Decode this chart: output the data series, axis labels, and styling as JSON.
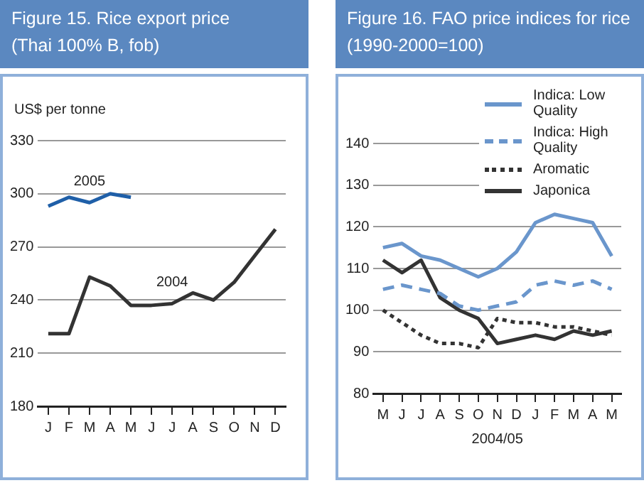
{
  "chart_data": [
    {
      "type": "line",
      "title": "Figure 15. Rice export price",
      "subtitle": "(Thai 100% B, fob)",
      "ylabel": "US$ per tonne",
      "categories": [
        "J",
        "F",
        "M",
        "A",
        "M",
        "J",
        "J",
        "A",
        "S",
        "O",
        "N",
        "D"
      ],
      "series": [
        {
          "name": "2005",
          "color": "#1f5fa8",
          "values": [
            293,
            298,
            295,
            300,
            298,
            null,
            null,
            null,
            null,
            null,
            null,
            null
          ]
        },
        {
          "name": "2004",
          "color": "#333333",
          "values": [
            221,
            221,
            253,
            248,
            237,
            237,
            238,
            244,
            240,
            250,
            265,
            280
          ]
        }
      ],
      "ylim": [
        180,
        330
      ],
      "yticks": [
        180,
        210,
        240,
        270,
        300,
        330
      ],
      "grid": "y",
      "legend": false,
      "marker": "none"
    },
    {
      "type": "line",
      "title": "Figure 16. FAO price indices for rice",
      "subtitle": "(1990-2000=100)",
      "xlabel": "2004/05",
      "categories": [
        "M",
        "J",
        "J",
        "A",
        "S",
        "O",
        "N",
        "D",
        "J",
        "F",
        "M",
        "A",
        "M"
      ],
      "series": [
        {
          "name": "Indica: Low Quality",
          "color": "#6a96cc",
          "line_style": "solid",
          "values": [
            115,
            116,
            113,
            112,
            110,
            108,
            110,
            114,
            121,
            123,
            122,
            121,
            113
          ]
        },
        {
          "name": "Indica: High Quality",
          "color": "#6a96cc",
          "line_style": "dashed",
          "values": [
            105,
            106,
            105,
            104,
            101,
            100,
            101,
            102,
            106,
            107,
            106,
            107,
            105
          ]
        },
        {
          "name": "Aromatic",
          "color": "#333333",
          "line_style": "dotted",
          "values": [
            100,
            97,
            94,
            92,
            92,
            91,
            98,
            97,
            97,
            96,
            96,
            95,
            94
          ]
        },
        {
          "name": "Japonica",
          "color": "#333333",
          "line_style": "solid",
          "values": [
            112,
            109,
            112,
            103,
            100,
            98,
            92,
            93,
            94,
            93,
            95,
            94,
            95
          ]
        }
      ],
      "ylim": [
        80,
        140
      ],
      "yticks": [
        80,
        90,
        100,
        110,
        120,
        130,
        140
      ],
      "grid": "y",
      "legend": "top right",
      "marker": "none"
    }
  ]
}
